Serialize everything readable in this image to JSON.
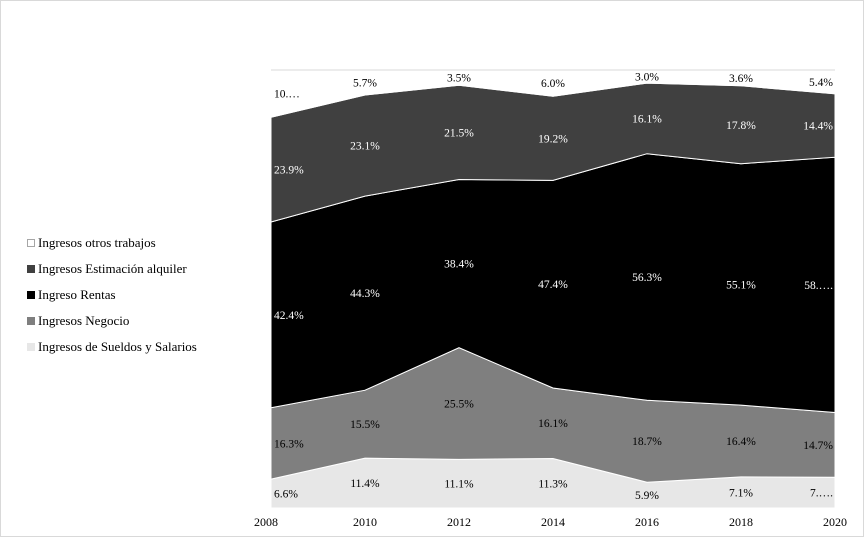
{
  "chart_data": {
    "type": "area",
    "stacked": "percent",
    "x": [
      "2008",
      "2010",
      "2012",
      "2014",
      "2016",
      "2018",
      "2020"
    ],
    "ylim": [
      0,
      100
    ],
    "grid": false,
    "legend_position": "left",
    "series": [
      {
        "name": "Ingresos de Sueldos y Salarios",
        "color": "#e7e7e7",
        "label_color": "#000000",
        "values": [
          6.6,
          11.4,
          11.1,
          11.3,
          5.9,
          7.1,
          7.0
        ],
        "labels": [
          "6.6%",
          "11.4%",
          "11.1%",
          "11.3%",
          "5.9%",
          "7.1%",
          "7.…."
        ]
      },
      {
        "name": "Ingresos Negocio",
        "color": "#7f7f7f",
        "label_color": "#000000",
        "values": [
          16.3,
          15.5,
          25.5,
          16.1,
          18.7,
          16.4,
          14.7
        ],
        "labels": [
          "16.3%",
          "15.5%",
          "25.5%",
          "16.1%",
          "18.7%",
          "16.4%",
          "14.7%"
        ]
      },
      {
        "name": "Ingreso Rentas",
        "color": "#000000",
        "label_color": "#ffffff",
        "values": [
          42.4,
          44.3,
          38.4,
          47.4,
          56.3,
          55.1,
          58.0
        ],
        "labels": [
          "42.4%",
          "44.3%",
          "38.4%",
          "47.4%",
          "56.3%",
          "55.1%",
          "58.…."
        ]
      },
      {
        "name": "Ingresos Estimación alquiler",
        "color": "#404040",
        "label_color": "#ffffff",
        "values": [
          23.9,
          23.1,
          21.5,
          19.2,
          16.1,
          17.8,
          14.4
        ],
        "labels": [
          "23.9%",
          "23.1%",
          "21.5%",
          "19.2%",
          "16.1%",
          "17.8%",
          "14.4%"
        ]
      },
      {
        "name": "Ingresos otros trabajos",
        "color": "#ffffff",
        "label_color": "#000000",
        "values": [
          10.8,
          5.7,
          3.5,
          6.0,
          3.0,
          3.6,
          5.4
        ],
        "labels": [
          "10.…",
          "5.7%",
          "3.5%",
          "6.0%",
          "3.0%",
          "3.6%",
          "5.4%"
        ]
      }
    ]
  }
}
